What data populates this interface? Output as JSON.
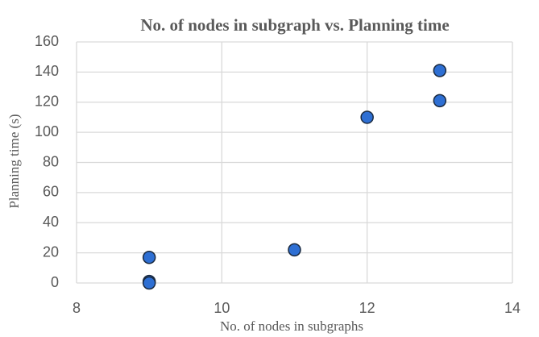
{
  "chart_data": {
    "type": "scatter",
    "title": "No. of nodes in subgraph vs. Planning time",
    "x_label": "No. of nodes in subgraphs",
    "y_label": "Planning time (s)",
    "series": [
      {
        "color": "#2e6fd3",
        "x": [
          9,
          9,
          9,
          11,
          12,
          13,
          13
        ],
        "values": [
          17,
          1,
          0,
          22,
          110,
          121,
          141
        ]
      }
    ],
    "xlim": [
      8,
      14
    ],
    "xticks": [
      8,
      10,
      12,
      14
    ],
    "ylim": [
      0,
      160
    ],
    "yticks": [
      0,
      20,
      40,
      60,
      80,
      100,
      120,
      140,
      160
    ],
    "grid": true
  }
}
